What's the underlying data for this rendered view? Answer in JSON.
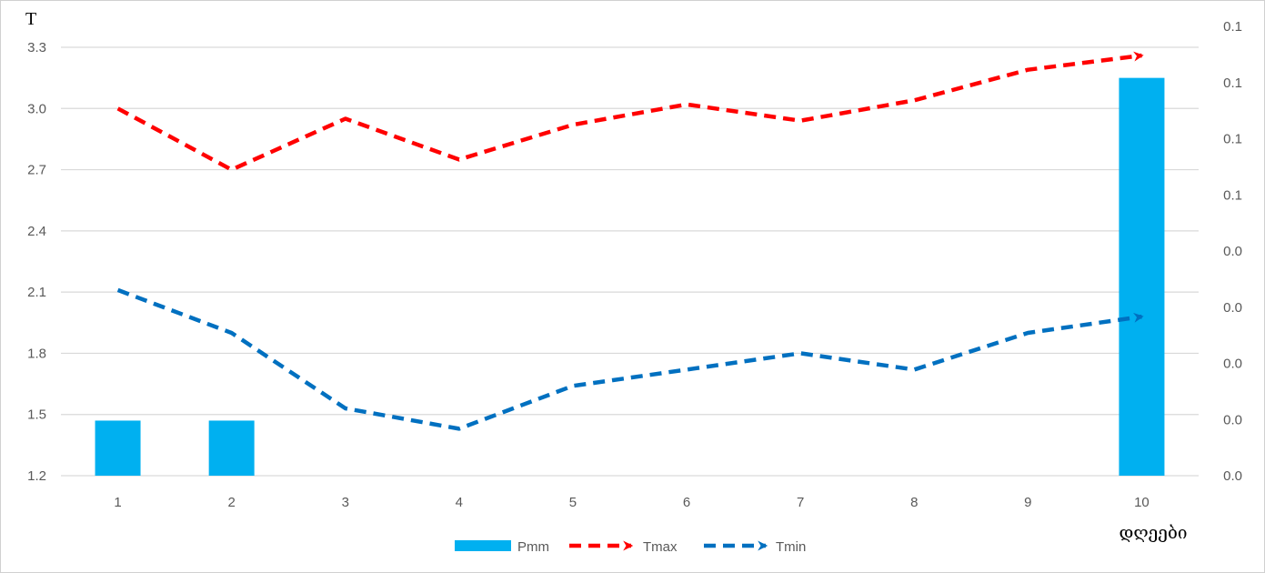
{
  "chart_data": {
    "type": "bar",
    "categories": [
      "1",
      "2",
      "3",
      "4",
      "5",
      "6",
      "7",
      "8",
      "9",
      "10"
    ],
    "series": [
      {
        "name": "Pmm",
        "kind": "bar",
        "axis": "right",
        "color": "#00B0F0",
        "values": [
          0.018,
          0.018,
          0,
          0,
          0,
          0,
          0,
          0,
          0,
          0.13
        ]
      },
      {
        "name": "Tmax",
        "kind": "line",
        "style": "dashed-arrow",
        "axis": "left",
        "color": "#FF0000",
        "values": [
          3.0,
          2.7,
          2.95,
          2.75,
          2.92,
          3.02,
          2.94,
          3.04,
          3.19,
          3.26
        ]
      },
      {
        "name": "Tmin",
        "kind": "line",
        "style": "dashed-arrow",
        "axis": "left",
        "color": "#0070C0",
        "values": [
          2.11,
          1.9,
          1.53,
          1.43,
          1.64,
          1.72,
          1.8,
          1.72,
          1.9,
          1.98
        ]
      }
    ],
    "ylabel": "T",
    "xlabel": "დღეები",
    "ylim": [
      1.2,
      3.3
    ],
    "yticks": [
      "1.2",
      "1.5",
      "1.8",
      "2.1",
      "2.4",
      "2.7",
      "3.0",
      "3.3"
    ],
    "y2lim": [
      0,
      0.14
    ],
    "y2ticks": [
      "0.0",
      "0.0",
      "0.0",
      "0.0",
      "0.0",
      "0.1",
      "0.1",
      "0.1",
      "0.1"
    ],
    "grid": true,
    "gridColor": "#d9d9d9",
    "legend": "bottom"
  }
}
